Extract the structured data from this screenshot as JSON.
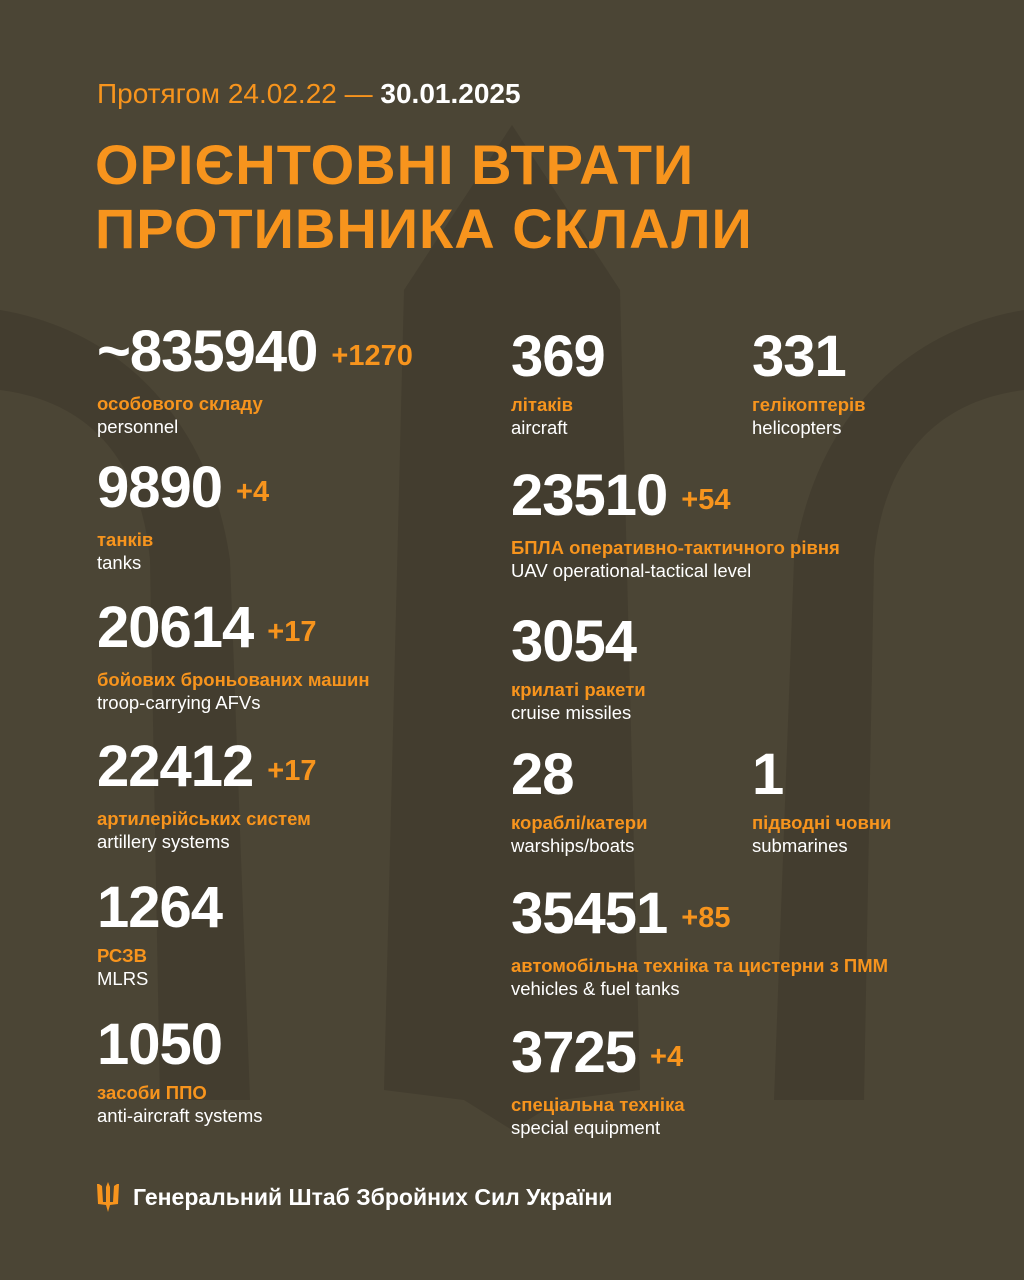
{
  "colors": {
    "background": "#4b4535",
    "accent": "#f7941d",
    "text": "#ffffff"
  },
  "header": {
    "period_prefix": "Протягом 24.02.22 —",
    "period_end": "30.01.2025",
    "title_line1": "ОРІЄНТОВНІ ВТРАТИ",
    "title_line2": "ПРОТИВНИКА СКЛАЛИ"
  },
  "left": [
    {
      "value": "~835940",
      "delta": "+1270",
      "ua": "особового складу",
      "en": "personnel"
    },
    {
      "value": "9890",
      "delta": "+4",
      "ua": "танків",
      "en": "tanks"
    },
    {
      "value": "20614",
      "delta": "+17",
      "ua": "бойових броньованих машин",
      "en": "troop-carrying AFVs"
    },
    {
      "value": "22412",
      "delta": "+17",
      "ua": "артилерійських систем",
      "en": "artillery systems"
    },
    {
      "value": "1264",
      "delta": "",
      "ua": "РСЗВ",
      "en": "MLRS"
    },
    {
      "value": "1050",
      "delta": "",
      "ua": "засоби ППО",
      "en": "anti-aircraft systems"
    }
  ],
  "right": [
    {
      "value": "369",
      "delta": "",
      "ua": "літаків",
      "en": "aircraft"
    },
    {
      "value": "331",
      "delta": "",
      "ua": "гелікоптерів",
      "en": "helicopters"
    },
    {
      "value": "23510",
      "delta": "+54",
      "ua": "БПЛА оперативно-тактичного рівня",
      "en": "UAV operational-tactical level"
    },
    {
      "value": "3054",
      "delta": "",
      "ua": "крилаті ракети",
      "en": "cruise missiles"
    },
    {
      "value": "28",
      "delta": "",
      "ua": "кораблі/катери",
      "en": "warships/boats"
    },
    {
      "value": "1",
      "delta": "",
      "ua": "підводні човни",
      "en": "submarines"
    },
    {
      "value": "35451",
      "delta": "+85",
      "ua": "автомобільна техніка та цистерни з ПММ",
      "en": "vehicles & fuel tanks"
    },
    {
      "value": "3725",
      "delta": "+4",
      "ua": "спеціальна техніка",
      "en": "special equipment"
    }
  ],
  "footer": {
    "icon": "trident-icon",
    "text": "Генеральний Штаб Збройних Сил України"
  }
}
